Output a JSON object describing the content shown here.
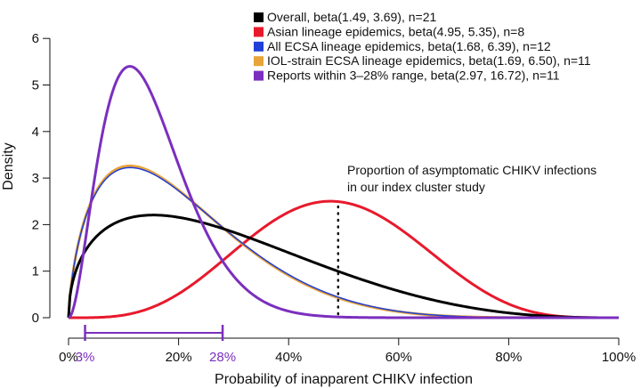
{
  "chart_data": {
    "type": "line",
    "xlabel": "Probability of inapparent CHIKV infection",
    "ylabel": "Density",
    "xlim": [
      0,
      1
    ],
    "ylim": [
      0,
      6.5
    ],
    "x_ticks": [
      {
        "value": 0,
        "label": "0%"
      },
      {
        "value": 0.2,
        "label": "20%"
      },
      {
        "value": 0.4,
        "label": "40%"
      },
      {
        "value": 0.6,
        "label": "60%"
      },
      {
        "value": 0.8,
        "label": "80%"
      },
      {
        "value": 1.0,
        "label": "100%"
      }
    ],
    "y_ticks": [
      0,
      1,
      2,
      3,
      4,
      5,
      6
    ],
    "range_markers": {
      "color": "#7b2fbe",
      "range": [
        0.03,
        0.28
      ],
      "labels": [
        {
          "value": 0.03,
          "label": "3%"
        },
        {
          "value": 0.28,
          "label": "28%"
        }
      ]
    },
    "series": [
      {
        "name": "Overall, beta(1.49, 3.69), n=21",
        "distribution": "beta",
        "alpha": 1.49,
        "beta": 3.69,
        "color": "#000000"
      },
      {
        "name": "Asian lineage epidemics, beta(4.95, 5.35), n=8",
        "distribution": "beta",
        "alpha": 4.95,
        "beta": 5.35,
        "color": "#e8192c"
      },
      {
        "name": "All ECSA lineage epidemics, beta(1.68, 6.39), n=12",
        "distribution": "beta",
        "alpha": 1.68,
        "beta": 6.39,
        "color": "#1f3fd6"
      },
      {
        "name": "IOL-strain ECSA lineage epidemics, beta(1.69, 6.50), n=11",
        "distribution": "beta",
        "alpha": 1.69,
        "beta": 6.5,
        "color": "#e8a33a"
      },
      {
        "name": "Reports within 3–28% range, beta(2.97, 16.72), n=11",
        "distribution": "beta",
        "alpha": 2.97,
        "beta": 16.72,
        "color": "#7b2fbe"
      }
    ],
    "annotation": {
      "lines": [
        "Proportion of asymptomatic CHIKV infections",
        "in our index cluster study"
      ],
      "x": 0.49
    },
    "grid": false,
    "legend_position": "top-right"
  }
}
